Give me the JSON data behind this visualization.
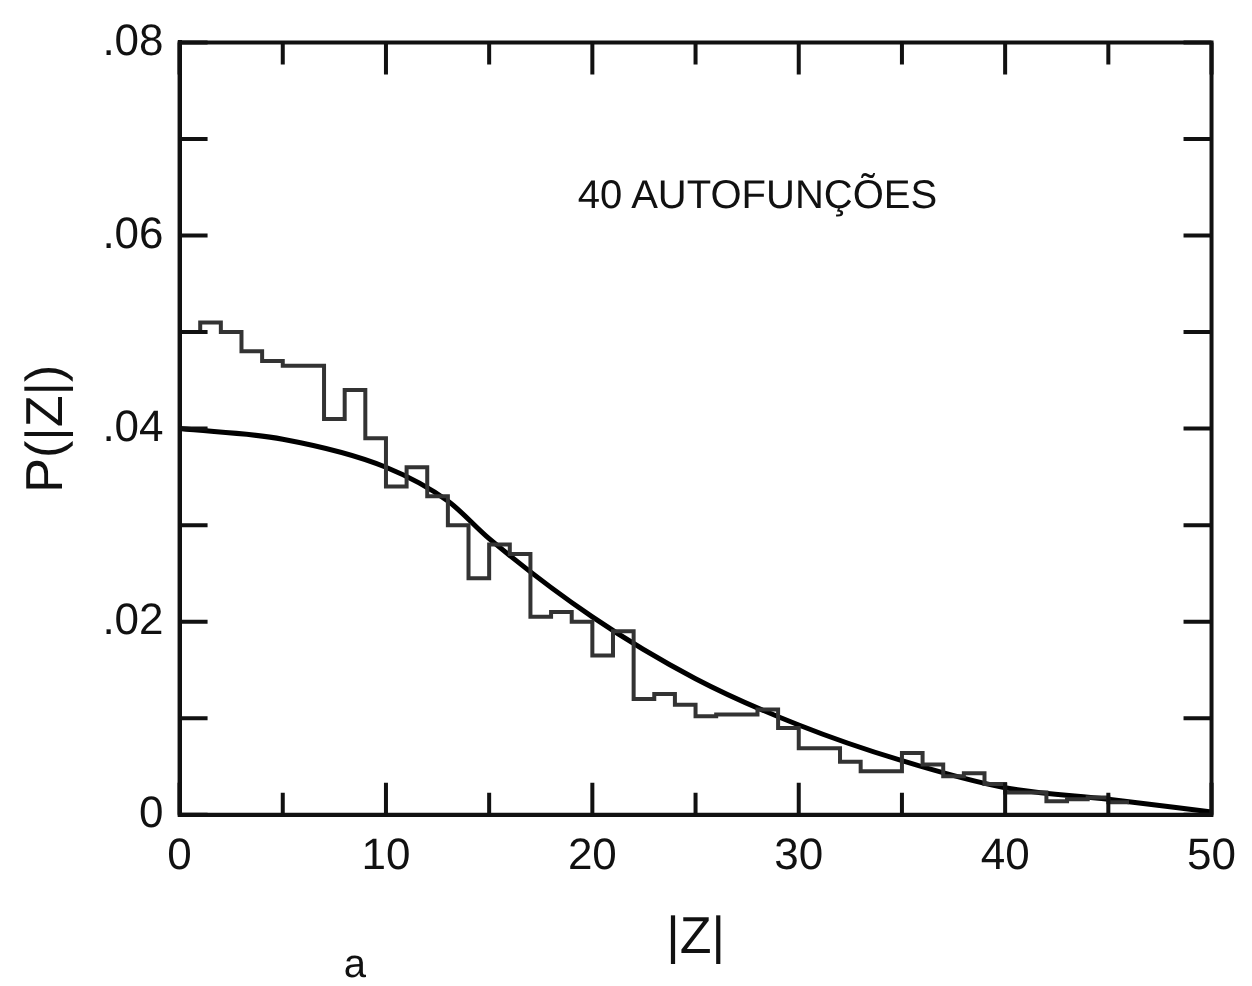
{
  "chart_data": {
    "type": "histogram",
    "xlabel": "|Z|",
    "ylabel": "P(|Z|)",
    "annotations": [
      "40 AUTOFUNÇÕES",
      "a"
    ],
    "xlim": [
      0,
      50
    ],
    "ylim": [
      0,
      0.08
    ],
    "xticks": [
      0,
      {
        "value": 5,
        "label": null
      },
      10,
      {
        "value": 15,
        "label": null
      },
      20,
      {
        "value": 25,
        "label": null
      },
      30,
      {
        "value": 35,
        "label": null
      },
      40,
      {
        "value": 45,
        "label": null
      },
      50
    ],
    "yticks": [
      0,
      {
        "value": 0.01,
        "label": null
      },
      {
        "value": 0.02,
        "label": ".02"
      },
      {
        "value": 0.03,
        "label": null
      },
      {
        "value": 0.04,
        "label": ".04"
      },
      {
        "value": 0.05,
        "label": null
      },
      {
        "value": 0.06,
        "label": ".06"
      },
      {
        "value": 0.07,
        "label": null
      },
      {
        "value": 0.08,
        "label": ".08"
      }
    ],
    "grid": false,
    "legend": false,
    "series": [
      {
        "type": "histogram",
        "color": "#333333",
        "bins": [
          0,
          1,
          2,
          3,
          4,
          5,
          6,
          7,
          8,
          9,
          10,
          11,
          12,
          13,
          14,
          15,
          16,
          17,
          18,
          19,
          20,
          21,
          22,
          23,
          24,
          25,
          26,
          27,
          28,
          29,
          30,
          31,
          32,
          33,
          34,
          35,
          36,
          37,
          38,
          39,
          40,
          41,
          42,
          43,
          44,
          45,
          46
        ],
        "values": [
          0.05,
          0.051,
          0.05,
          0.048,
          0.047,
          0.0465,
          0.0465,
          0.041,
          0.044,
          0.039,
          0.034,
          0.036,
          0.033,
          0.03,
          0.0245,
          0.028,
          0.027,
          0.0205,
          0.021,
          0.02,
          0.0165,
          0.019,
          0.012,
          0.0125,
          0.0114,
          0.0102,
          0.0104,
          0.0104,
          0.0109,
          0.009,
          0.0069,
          0.0069,
          0.0055,
          0.0045,
          0.0045,
          0.0064,
          0.0052,
          0.004,
          0.0043,
          0.0032,
          0.0023,
          0.0023,
          0.0014,
          0.0016,
          0.0018,
          0.0013
        ]
      },
      {
        "type": "line",
        "color": "#000000",
        "x": [
          0,
          5,
          10,
          13,
          15,
          20,
          25,
          30,
          35,
          40,
          45,
          50
        ],
        "values": [
          0.04,
          0.0389,
          0.036,
          0.0325,
          0.0286,
          0.0205,
          0.0141,
          0.0093,
          0.0056,
          0.0028,
          0.0016,
          0.0003
        ]
      }
    ]
  }
}
